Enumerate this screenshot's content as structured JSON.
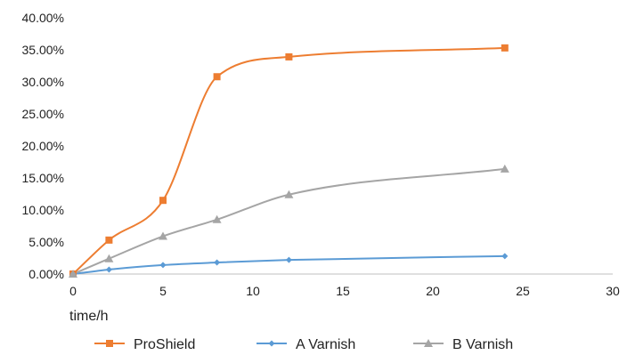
{
  "chart_data": {
    "type": "line",
    "xlabel": "time/h",
    "ylabel": "",
    "xlim": [
      0,
      30
    ],
    "ylim": [
      0,
      40
    ],
    "x_ticks": [
      0,
      5,
      10,
      15,
      20,
      25,
      30
    ],
    "y_ticks": [
      0,
      5,
      10,
      15,
      20,
      25,
      30,
      35,
      40
    ],
    "y_tick_labels": [
      "0.00%",
      "5.00%",
      "10.00%",
      "15.00%",
      "20.00%",
      "25.00%",
      "30.00%",
      "35.00%",
      "40.00%"
    ],
    "grid": false,
    "legend_position": "bottom",
    "series": [
      {
        "name": "ProShield",
        "color": "#ED7D31",
        "marker": "square",
        "x": [
          0,
          2,
          5,
          8,
          12,
          24
        ],
        "y": [
          0,
          5.3,
          11.5,
          30.8,
          33.9,
          35.3
        ]
      },
      {
        "name": "A Varnish",
        "color": "#5B9BD5",
        "marker": "diamond",
        "x": [
          0,
          2,
          5,
          8,
          12,
          24
        ],
        "y": [
          0,
          0.7,
          1.4,
          1.8,
          2.2,
          2.8
        ]
      },
      {
        "name": "B Varnish",
        "color": "#A5A5A5",
        "marker": "triangle",
        "x": [
          0,
          2,
          5,
          8,
          12,
          24
        ],
        "y": [
          0,
          2.4,
          5.9,
          8.5,
          12.4,
          16.4
        ]
      }
    ]
  }
}
